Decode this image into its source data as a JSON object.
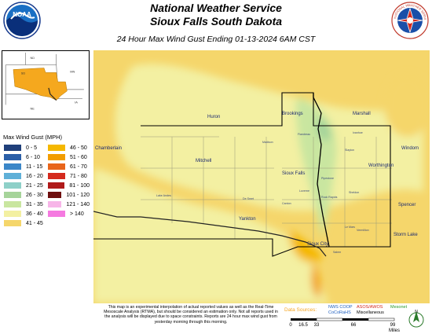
{
  "header": {
    "title_line1": "National Weather Service",
    "title_line2": "Sioux Falls South Dakota",
    "subtitle": "24 Hour Max Wind Gust Ending 01-13-2024 6AM CST"
  },
  "logos": {
    "left": "NOAA",
    "right_ring_text": "NATIONAL WEATHER SERVICE"
  },
  "inset": {
    "state_labels": [
      "ND",
      "MN",
      "SD",
      "NE",
      "IA"
    ]
  },
  "legend": {
    "title": "Max Wind Gust (MPH)",
    "items": [
      {
        "label": "0 - 5",
        "color": "#1f3f7a"
      },
      {
        "label": "46 - 50",
        "color": "#f5b800"
      },
      {
        "label": "6 - 10",
        "color": "#2b5fa8"
      },
      {
        "label": "51 - 60",
        "color": "#f29d00"
      },
      {
        "label": "11 - 15",
        "color": "#3a86c8"
      },
      {
        "label": "61 - 70",
        "color": "#e8651a"
      },
      {
        "label": "16 - 20",
        "color": "#5fb0d8"
      },
      {
        "label": "71 - 80",
        "color": "#d42a1e"
      },
      {
        "label": "21 - 25",
        "color": "#8ed0c8"
      },
      {
        "label": "81 - 100",
        "color": "#b01a1a"
      },
      {
        "label": "26 - 30",
        "color": "#a6d49a"
      },
      {
        "label": "101 - 120",
        "color": "#6e0f0f"
      },
      {
        "label": "31 - 35",
        "color": "#c9e6a0"
      },
      {
        "label": "121 - 140",
        "color": "#f7b5e8"
      },
      {
        "label": "36 - 40",
        "color": "#f3f0a2"
      },
      {
        "label": "> 140",
        "color": "#f57ae0"
      },
      {
        "label": "41 - 45",
        "color": "#f5d66b"
      }
    ]
  },
  "map": {
    "cities": [
      {
        "name": "Huron",
        "major": true
      },
      {
        "name": "Brookings",
        "major": true
      },
      {
        "name": "Marshall",
        "major": true
      },
      {
        "name": "Chamberlain",
        "major": true
      },
      {
        "name": "Mitchell",
        "major": true
      },
      {
        "name": "Sioux Falls",
        "major": true
      },
      {
        "name": "Windom",
        "major": true
      },
      {
        "name": "Worthington",
        "major": true
      },
      {
        "name": "Spencer",
        "major": true
      },
      {
        "name": "Storm Lake",
        "major": true
      },
      {
        "name": "Yankton",
        "major": true
      },
      {
        "name": "Sioux City",
        "major": true
      },
      {
        "name": "Flandreau",
        "major": false
      },
      {
        "name": "Madison",
        "major": false
      },
      {
        "name": "Pipestone",
        "major": false
      },
      {
        "name": "Luverne",
        "major": false
      },
      {
        "name": "Rock Rapids",
        "major": false
      },
      {
        "name": "Sheldon",
        "major": false
      },
      {
        "name": "Le Mars",
        "major": false
      },
      {
        "name": "Vermillion",
        "major": false
      },
      {
        "name": "Salem",
        "major": false
      },
      {
        "name": "De Smet",
        "major": false
      },
      {
        "name": "Lake Andes",
        "major": false
      },
      {
        "name": "Ivanhoe",
        "major": false
      },
      {
        "name": "Slayton",
        "major": false
      },
      {
        "name": "Canton",
        "major": false
      }
    ]
  },
  "disclaimer": "This map is an experimental interpolation of actual reported values as well as the Real-Time Mesoscale Analysis (RTMA), but should be considered an estimation only. Not all reports used in the analysis will be displayed due to space constraints. Reports are 24 hour max wind gust from yesterday morning through this morning.",
  "data_sources": {
    "title": "Data Sources:",
    "entries": [
      "NWS COOP",
      "ASOS/AWOS",
      "Mesonet",
      "CoCoRaHS",
      "Miscellaneous"
    ],
    "colors": [
      "#1f5fbf",
      "#d42a1e",
      "#2a9a2a",
      "#1f5fbf",
      "#000000"
    ]
  },
  "scale": {
    "ticks": [
      "0",
      "16.5",
      "33",
      "66",
      "99"
    ],
    "unit": "Miles"
  },
  "north_arrow": "N"
}
